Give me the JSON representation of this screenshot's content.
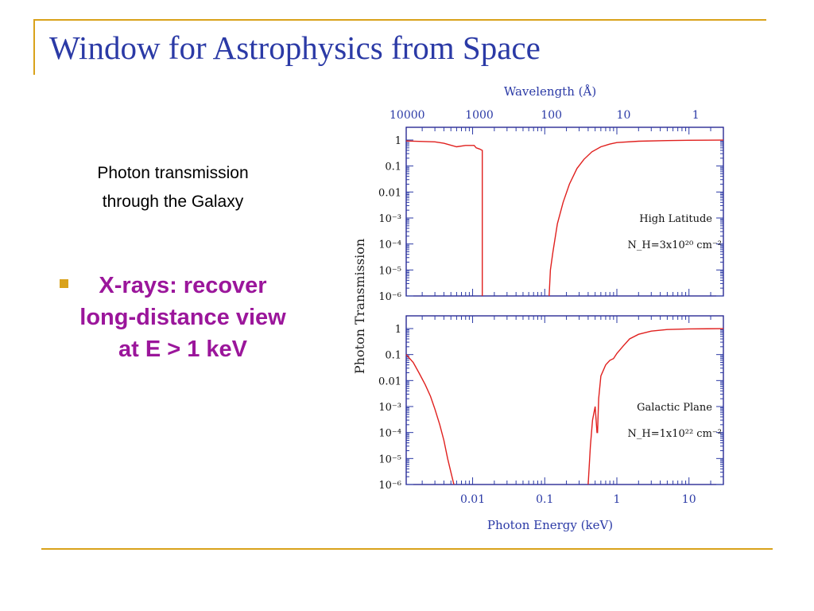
{
  "slide": {
    "title": "Window for Astrophysics from Space",
    "subtitle_lines": [
      "Photon transmission",
      "through the Galaxy"
    ],
    "bullet": "X-rays: recover long-distance view at E > 1 keV"
  },
  "colors": {
    "accent": "#d9a21b",
    "title": "#2b3aa6",
    "bullet_text": "#9b169b",
    "axis_text": "#2b3aa6",
    "curve": "#e0201e"
  },
  "chart_data": {
    "type": "line",
    "x_scale": "log",
    "y_scale": "log",
    "xlabel": "Photon Energy (keV)",
    "x_ticks": [
      "0.01",
      "0.1",
      "1",
      "10"
    ],
    "top_axis_label": "Wavelength (Å)",
    "top_ticks": [
      "10000",
      "1000",
      "100",
      "10",
      "1"
    ],
    "ylabel": "Photon Transmission",
    "y_ticks": [
      "1",
      "0.1",
      "0.01",
      "10⁻³",
      "10⁻⁴",
      "10⁻⁵",
      "10⁻⁶"
    ],
    "xlim": [
      0.0012,
      30
    ],
    "ylim": [
      1e-06,
      3
    ],
    "panels": [
      {
        "name": "High Latitude",
        "annotation": "High Latitude",
        "column_density": "N_H=3x10²⁰ cm⁻²",
        "series": [
          {
            "x": [
              0.0012,
              0.002,
              0.003,
              0.004,
              0.006,
              0.008,
              0.0105,
              0.0112,
              0.0125,
              0.0136,
              0.0136
            ],
            "y": [
              0.92,
              0.88,
              0.85,
              0.75,
              0.55,
              0.62,
              0.62,
              0.5,
              0.45,
              0.4,
              1e-06
            ]
          },
          {
            "x": [
              0.115,
              0.12,
              0.13,
              0.15,
              0.18,
              0.22,
              0.28,
              0.35,
              0.45,
              0.6,
              0.8,
              1,
              2,
              5,
              10,
              30
            ],
            "y": [
              1e-06,
              1e-05,
              5e-05,
              0.0006,
              0.004,
              0.02,
              0.08,
              0.18,
              0.35,
              0.55,
              0.7,
              0.8,
              0.9,
              0.95,
              0.98,
              0.99
            ]
          }
        ]
      },
      {
        "name": "Galactic Plane",
        "annotation": "Galactic Plane",
        "column_density": "N_H=1x10²² cm⁻²",
        "series": [
          {
            "x": [
              0.0012,
              0.0015,
              0.0018,
              0.0022,
              0.0026,
              0.003,
              0.0035,
              0.004,
              0.0045,
              0.005,
              0.0055
            ],
            "y": [
              0.1,
              0.05,
              0.02,
              0.007,
              0.0025,
              0.0008,
              0.0002,
              5e-05,
              1e-05,
              3e-06,
              1e-06
            ]
          },
          {
            "x": [
              0.4,
              0.43,
              0.46,
              0.5,
              0.53,
              0.54,
              0.56,
              0.6,
              0.7,
              0.8,
              0.9,
              1,
              1.2,
              1.5,
              2,
              3,
              5,
              10,
              30
            ],
            "y": [
              1e-06,
              3e-05,
              0.0003,
              0.001,
              0.0001,
              0.0001,
              0.002,
              0.015,
              0.04,
              0.06,
              0.07,
              0.11,
              0.2,
              0.4,
              0.6,
              0.8,
              0.92,
              0.97,
              0.99
            ]
          }
        ]
      }
    ]
  }
}
